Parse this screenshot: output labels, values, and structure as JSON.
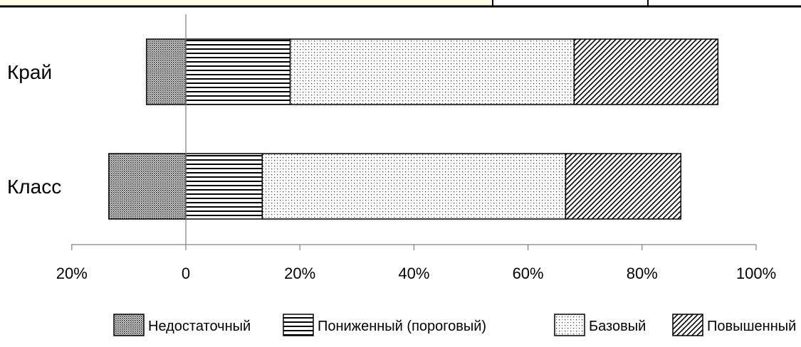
{
  "chart_data": {
    "type": "bar",
    "orientation": "horizontal",
    "stacked": true,
    "categories": [
      "Край",
      "Класс"
    ],
    "x_tick_labels": [
      "20%",
      "0",
      "20%",
      "40%",
      "60%",
      "80%",
      "100%"
    ],
    "xlim": [
      -20,
      100
    ],
    "series": [
      {
        "name": "Недостаточный",
        "values": [
          -6.9,
          -13.5
        ],
        "pattern": "dense-dots"
      },
      {
        "name": "Пониженный (пороговый)",
        "values": [
          18.3,
          13.4
        ],
        "pattern": "horizontal-lines"
      },
      {
        "name": "Базовый",
        "values": [
          49.8,
          53.2
        ],
        "pattern": "sparse-dots"
      },
      {
        "name": "Повышенный",
        "values": [
          25.2,
          20.2
        ],
        "pattern": "diagonal-lines"
      }
    ],
    "legend_position": "bottom",
    "grid": false,
    "colors": {
      "stroke": "#000000",
      "axis": "#808080",
      "background": "#ffffff",
      "header_highlight": "#fffde7"
    }
  }
}
